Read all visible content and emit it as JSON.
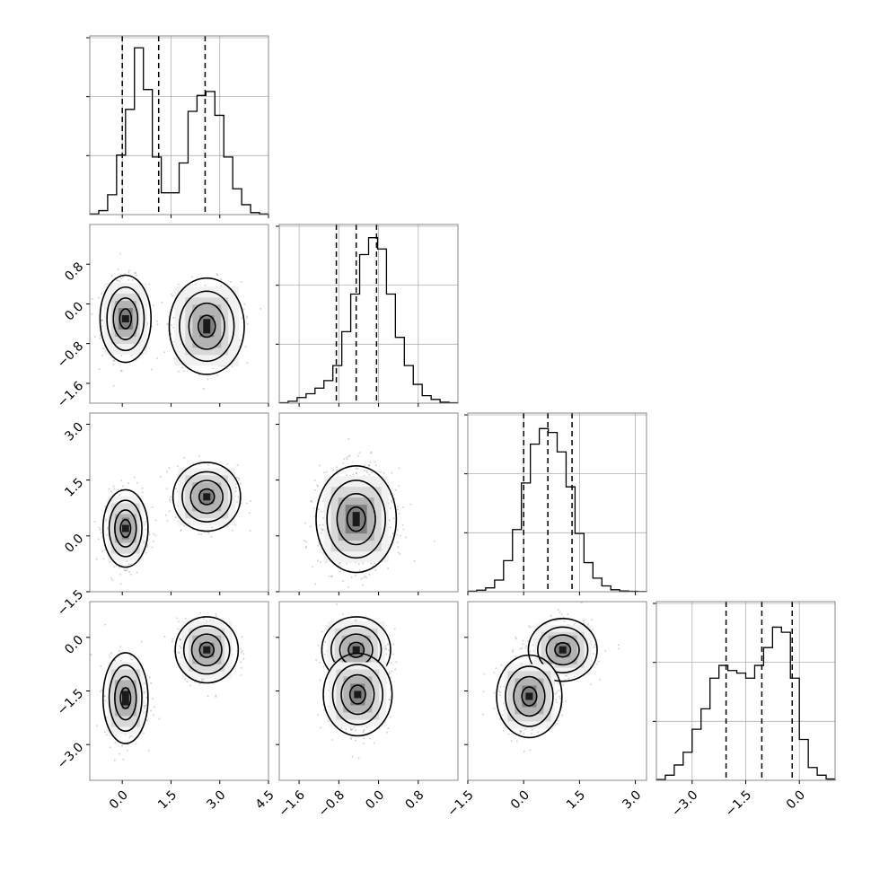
{
  "chart_data": {
    "type": "corner",
    "grid": true,
    "variables": [
      {
        "range": [
          -1.0,
          4.5
        ],
        "ticks": [
          "0.0",
          "1.5",
          "3.0",
          "4.5"
        ],
        "quantiles": [
          0.0,
          1.12,
          2.55
        ],
        "hist_edges_start": -1.0,
        "hist_bin_width": 0.275,
        "hist_counts": [
          0.3,
          2.0,
          10.0,
          30.0,
          53.0,
          84.0,
          63.0,
          29.0,
          11.0,
          11.0,
          26.0,
          52.0,
          60.0,
          62.0,
          50.0,
          29.0,
          13.0,
          5.0,
          1.0,
          0.3
        ],
        "hist_ylim": [
          0,
          90
        ]
      },
      {
        "range": [
          -2.0,
          1.6
        ],
        "ticks": [
          "-1.6",
          "-0.8",
          "0.0",
          "0.8"
        ],
        "quantiles": [
          -0.85,
          -0.45,
          -0.04
        ],
        "hist_edges_start": -2.0,
        "hist_bin_width": 0.18,
        "hist_counts": [
          0.2,
          1.0,
          3.0,
          5.0,
          8.0,
          12.0,
          20.0,
          38.0,
          58.0,
          79.0,
          88.0,
          82.0,
          58.0,
          35.0,
          20.0,
          10.0,
          4.0,
          2.0,
          0.5,
          0.2
        ],
        "hist_ylim": [
          0,
          95
        ]
      },
      {
        "range": [
          -1.5,
          3.3
        ],
        "ticks": [
          "-1.5",
          "0.0",
          "1.5",
          "3.0"
        ],
        "quantiles": [
          0.0,
          0.65,
          1.3
        ],
        "hist_edges_start": -1.5,
        "hist_bin_width": 0.24,
        "hist_counts": [
          0.3,
          0.8,
          2.0,
          6.0,
          16.0,
          32.0,
          56.0,
          76.0,
          84.0,
          82.0,
          72.0,
          54.0,
          30.0,
          15.0,
          7.0,
          3.0,
          1.0,
          0.4,
          0.2,
          0.1
        ],
        "hist_ylim": [
          0,
          92
        ]
      },
      {
        "range": [
          -4.0,
          1.0
        ],
        "ticks": [
          "-3.0",
          "-1.5",
          "0.0"
        ],
        "quantiles": [
          -2.05,
          -1.05,
          -0.2
        ],
        "hist_edges_start": -4.0,
        "hist_bin_width": 0.25,
        "hist_counts": [
          0.3,
          2.0,
          6.0,
          11.0,
          20.0,
          28.0,
          40.0,
          45.0,
          43.0,
          42.0,
          40.0,
          45.0,
          52.0,
          60.0,
          58.0,
          40.0,
          16.0,
          5.0,
          2.0,
          0.5
        ],
        "hist_ylim": [
          0,
          70
        ]
      }
    ],
    "pairs": [
      {
        "xi": 0,
        "yi": 1,
        "blobs": [
          {
            "mx": 0.1,
            "my": -0.3,
            "sx": 0.34,
            "sy": 0.38,
            "w": 0.52
          },
          {
            "mx": 2.6,
            "my": -0.45,
            "sx": 0.5,
            "sy": 0.42,
            "w": 0.48
          }
        ]
      },
      {
        "xi": 0,
        "yi": 2,
        "blobs": [
          {
            "mx": 0.1,
            "my": 0.2,
            "sx": 0.3,
            "sy": 0.45,
            "w": 0.5
          },
          {
            "mx": 2.6,
            "my": 1.05,
            "sx": 0.45,
            "sy": 0.4,
            "w": 0.5
          }
        ]
      },
      {
        "xi": 0,
        "yi": 3,
        "blobs": [
          {
            "mx": 0.1,
            "my": -1.7,
            "sx": 0.3,
            "sy": 0.55,
            "w": 0.5
          },
          {
            "mx": 2.6,
            "my": -0.35,
            "sx": 0.42,
            "sy": 0.4,
            "w": 0.5
          }
        ]
      },
      {
        "xi": 1,
        "yi": 2,
        "blobs": [
          {
            "mx": -0.45,
            "my": 0.45,
            "sx": 0.35,
            "sy": 0.62,
            "w": 1.0
          }
        ]
      },
      {
        "xi": 1,
        "yi": 3,
        "blobs": [
          {
            "mx": -0.45,
            "my": -0.35,
            "sx": 0.3,
            "sy": 0.4,
            "w": 0.5
          },
          {
            "mx": -0.42,
            "my": -1.6,
            "sx": 0.3,
            "sy": 0.5,
            "w": 0.5
          }
        ]
      },
      {
        "xi": 2,
        "yi": 3,
        "blobs": [
          {
            "mx": 1.05,
            "my": -0.35,
            "sx": 0.4,
            "sy": 0.38,
            "w": 0.5
          },
          {
            "mx": 0.15,
            "my": -1.65,
            "sx": 0.38,
            "sy": 0.5,
            "w": 0.5
          }
        ]
      }
    ]
  }
}
